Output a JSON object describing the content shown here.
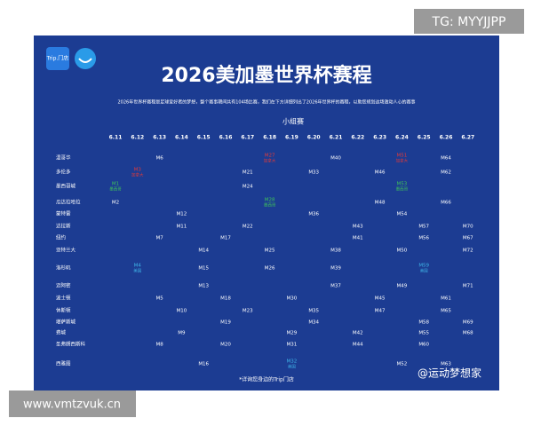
{
  "watermark_top": "TG: MYYJJPP",
  "watermark_bottom": "www.vmtzvuk.cn",
  "logo": "Trip.门店",
  "title": "2026美加墨世界杯赛程",
  "subtitle": "2026年世界杯赛程是足球爱好者的梦想，整个赛事期间共有104场比赛，我们在下方详细列出了2026年世界杯的赛程，以助您规划这场激动人心的赛事",
  "stage": "小组赛",
  "dates": [
    "6.11",
    "6.12",
    "6.13",
    "6.14",
    "6.15",
    "6.16",
    "6.17",
    "6.18",
    "6.19",
    "6.20",
    "6.21",
    "6.22",
    "6.23",
    "6.24",
    "6.25",
    "6.26",
    "6.27"
  ],
  "rows": [
    {
      "city": "温哥华",
      "matches": [
        null,
        null,
        "M6",
        null,
        null,
        null,
        null,
        {
          "label": "M27",
          "note": "加拿大",
          "color": "#e03a3a"
        },
        null,
        null,
        "M40",
        null,
        null,
        {
          "label": "M51",
          "note": "加拿大",
          "color": "#e03a3a"
        },
        null,
        "M64",
        null
      ]
    },
    {
      "city": "多伦多",
      "matches": [
        null,
        {
          "label": "M3",
          "note": "加拿大",
          "color": "#e03a3a"
        },
        null,
        null,
        null,
        null,
        "M21",
        null,
        null,
        "M33",
        null,
        null,
        "M46",
        null,
        null,
        "M62",
        null
      ]
    },
    {
      "city": "墨西哥城",
      "matches": [
        {
          "label": "M1",
          "note": "墨西哥",
          "color": "#3ec25a"
        },
        null,
        null,
        null,
        null,
        null,
        "M24",
        null,
        null,
        null,
        null,
        null,
        null,
        {
          "label": "M53",
          "note": "墨西哥",
          "color": "#3ec25a"
        },
        null,
        null,
        null
      ]
    },
    {
      "city": "瓜达拉哈拉",
      "matches": [
        "M2",
        null,
        null,
        null,
        null,
        null,
        null,
        {
          "label": "M28",
          "note": "墨西哥",
          "color": "#3ec25a"
        },
        null,
        null,
        null,
        null,
        "M48",
        null,
        null,
        "M66",
        null
      ]
    },
    {
      "city": "蒙特雷",
      "matches": [
        null,
        null,
        null,
        "M12",
        null,
        null,
        null,
        null,
        null,
        "M36",
        null,
        null,
        null,
        "M54",
        null,
        null,
        null
      ]
    },
    {
      "city": "达拉斯",
      "matches": [
        null,
        null,
        null,
        "M11",
        null,
        null,
        "M22",
        null,
        null,
        null,
        null,
        "M43",
        null,
        null,
        "M57",
        null,
        "M70"
      ]
    },
    {
      "city": "纽约",
      "matches": [
        null,
        null,
        "M7",
        null,
        null,
        "M17",
        null,
        null,
        null,
        null,
        null,
        "M41",
        null,
        null,
        "M56",
        null,
        "M67"
      ]
    },
    {
      "city": "亚特兰大",
      "matches": [
        null,
        null,
        null,
        null,
        "M14",
        null,
        null,
        "M25",
        null,
        null,
        "M38",
        null,
        null,
        "M50",
        null,
        null,
        "M72"
      ]
    },
    {
      "city": "洛杉矶",
      "matches": [
        null,
        {
          "label": "M4",
          "note": "美国",
          "color": "#3fb6e8"
        },
        null,
        null,
        "M15",
        null,
        null,
        "M26",
        null,
        null,
        "M39",
        null,
        null,
        null,
        {
          "label": "M59",
          "note": "美国",
          "color": "#3fb6e8"
        },
        null,
        null
      ]
    },
    {
      "city": "迈阿密",
      "matches": [
        null,
        null,
        null,
        null,
        "M13",
        null,
        null,
        null,
        null,
        null,
        "M37",
        null,
        null,
        "M49",
        null,
        null,
        "M71"
      ]
    },
    {
      "city": "波士顿",
      "matches": [
        null,
        null,
        "M5",
        null,
        null,
        "M18",
        null,
        null,
        "M30",
        null,
        null,
        null,
        "M45",
        null,
        null,
        "M61",
        null
      ]
    },
    {
      "city": "休斯顿",
      "matches": [
        null,
        null,
        null,
        "M10",
        null,
        null,
        "M23",
        null,
        null,
        "M35",
        null,
        null,
        "M47",
        null,
        null,
        "M65",
        null
      ]
    },
    {
      "city": "堪萨斯城",
      "matches": [
        null,
        null,
        null,
        null,
        null,
        "M19",
        null,
        null,
        null,
        "M34",
        null,
        null,
        null,
        null,
        "M58",
        null,
        "M69"
      ]
    },
    {
      "city": "费城",
      "matches": [
        null,
        null,
        null,
        "M9",
        null,
        null,
        null,
        null,
        "M29",
        null,
        null,
        "M42",
        null,
        null,
        "M55",
        null,
        "M68"
      ]
    },
    {
      "city": "圣弗朗西斯科",
      "matches": [
        null,
        null,
        "M8",
        null,
        null,
        "M20",
        null,
        null,
        "M31",
        null,
        null,
        "M44",
        null,
        null,
        "M60",
        null,
        null
      ]
    },
    {
      "city": "西雅图",
      "matches": [
        null,
        null,
        null,
        null,
        "M16",
        null,
        null,
        null,
        {
          "label": "M32",
          "note": "美国",
          "color": "#3fb6e8"
        },
        null,
        null,
        null,
        null,
        "M52",
        null,
        "M63",
        null
      ]
    }
  ],
  "footnote": "*详询您身边的Trip门店",
  "credit": "@运动梦想家"
}
